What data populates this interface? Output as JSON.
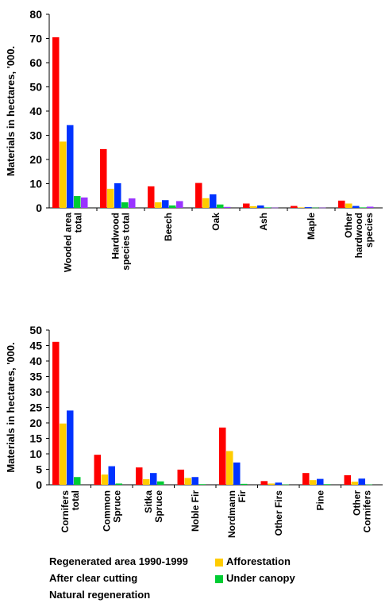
{
  "chart_data": [
    {
      "type": "bar",
      "ylabel": "Materials in hectares, '000.",
      "ylim": [
        0,
        80
      ],
      "yticks": [
        0,
        10,
        20,
        30,
        40,
        50,
        60,
        70,
        80
      ],
      "categories": [
        [
          "Wooded area",
          "total"
        ],
        [
          "Hardwood",
          "species total"
        ],
        [
          "Beech"
        ],
        [
          "Oak"
        ],
        [
          "Ash"
        ],
        [
          "Maple"
        ],
        [
          "Other",
          "hardwood",
          "species"
        ]
      ],
      "series": [
        {
          "name": "Regenerated area 1990-1999",
          "color": "#ff0000",
          "values": [
            70.5,
            24.3,
            8.9,
            10.3,
            1.8,
            0.8,
            3.0
          ]
        },
        {
          "name": "Afforestation",
          "color": "#ffcc00",
          "values": [
            27.4,
            7.9,
            2.3,
            4.0,
            0.7,
            0.2,
            1.8
          ]
        },
        {
          "name": "After clear cutting",
          "color": "#0033ff",
          "values": [
            34.2,
            10.2,
            3.2,
            5.6,
            1.0,
            0.3,
            0.8
          ]
        },
        {
          "name": "Under canopy",
          "color": "#00cc33",
          "values": [
            4.9,
            2.3,
            1.0,
            1.4,
            0.2,
            0.1,
            0.2
          ]
        },
        {
          "name": "Natural regeneration",
          "color": "#9933ff",
          "values": [
            4.3,
            3.9,
            2.8,
            0.4,
            0.1,
            0.1,
            0.5
          ]
        }
      ]
    },
    {
      "type": "bar",
      "ylabel": "Materials in hectares, '000.",
      "ylim": [
        0,
        50
      ],
      "yticks": [
        0,
        5,
        10,
        15,
        20,
        25,
        30,
        35,
        40,
        45,
        50
      ],
      "categories": [
        [
          "Cornifers",
          "total"
        ],
        [
          "Common",
          "Spruce"
        ],
        [
          "Sitka",
          "Spruce"
        ],
        [
          "Noble Fir"
        ],
        [
          "Nordmann",
          "Fir"
        ],
        [
          "Other Firs"
        ],
        [
          "Pine"
        ],
        [
          "Other",
          "Cornifers"
        ]
      ],
      "series": [
        {
          "name": "Regenerated area 1990-1999",
          "color": "#ff0000",
          "values": [
            46.2,
            9.7,
            5.6,
            4.9,
            18.5,
            1.2,
            3.8,
            3.1
          ]
        },
        {
          "name": "Afforestation",
          "color": "#ffcc00",
          "values": [
            19.8,
            3.3,
            1.8,
            2.2,
            10.9,
            0.4,
            1.5,
            1.0
          ]
        },
        {
          "name": "After clear cutting",
          "color": "#0033ff",
          "values": [
            24.0,
            6.0,
            3.8,
            2.5,
            7.2,
            0.7,
            1.9,
            2.0
          ]
        },
        {
          "name": "Under canopy",
          "color": "#00cc33",
          "values": [
            2.5,
            0.4,
            1.1,
            0.2,
            0.3,
            0.1,
            0.2,
            0.1
          ]
        }
      ]
    }
  ],
  "legend": {
    "items": [
      {
        "label": "Regenerated area 1990-1999"
      },
      {
        "label": "After clear cutting"
      },
      {
        "label": "Natural regeneration"
      },
      {
        "label": "Afforestation",
        "color": "#ffcc00"
      },
      {
        "label": "Under canopy",
        "color": "#00cc33"
      }
    ]
  }
}
